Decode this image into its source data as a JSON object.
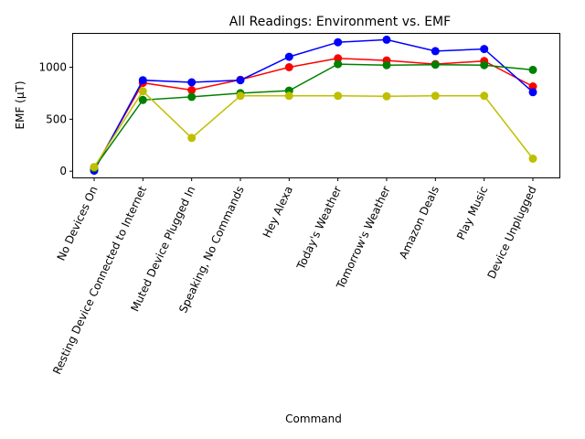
{
  "chart_data": {
    "type": "line",
    "title": "All Readings: Environment vs. EMF",
    "xlabel": "Command",
    "ylabel": "EMF (µT)",
    "ylim": [
      -60,
      1330
    ],
    "yticks": [
      0,
      500,
      1000
    ],
    "grid": false,
    "legend": "none",
    "categories": [
      "No Devices On",
      "Resting Device Connected to Internet",
      "Muted Device Plugged In",
      "Speaking, No Commands",
      "Hey Alexa",
      "Today's Weather",
      "Tomorrow's Weather",
      "Amazon Deals",
      "Play Music",
      "Device Unplugged"
    ],
    "series": [
      {
        "color": "#ff0000",
        "values": [
          20,
          850,
          780,
          880,
          1000,
          1085,
          1065,
          1030,
          1060,
          815
        ]
      },
      {
        "color": "#0000ff",
        "values": [
          5,
          875,
          855,
          875,
          1100,
          1240,
          1265,
          1155,
          1175,
          760
        ]
      },
      {
        "color": "#008000",
        "values": [
          30,
          685,
          715,
          750,
          775,
          1030,
          1020,
          1025,
          1020,
          975
        ]
      },
      {
        "color": "#bfbf00",
        "values": [
          40,
          770,
          320,
          725,
          725,
          725,
          720,
          725,
          725,
          120
        ]
      }
    ]
  }
}
